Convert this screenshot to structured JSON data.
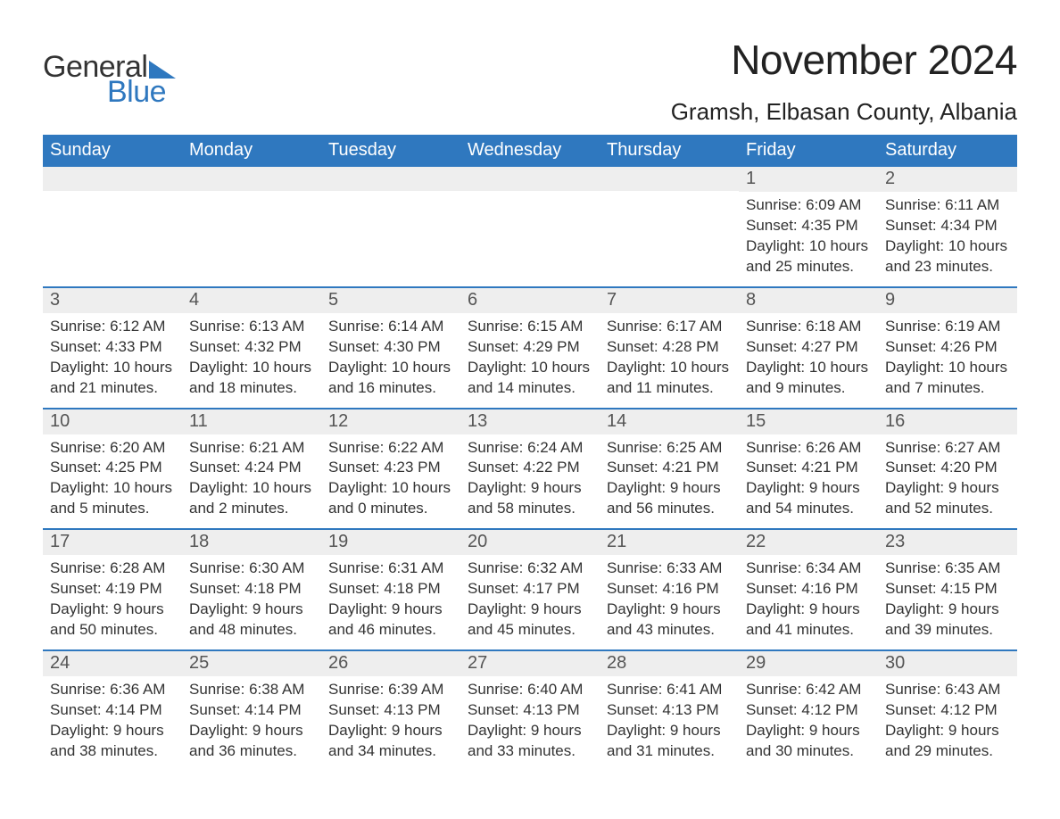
{
  "logo": {
    "text1": "General",
    "text2": "Blue",
    "icon_color": "#2f78bf"
  },
  "title": "November 2024",
  "location": "Gramsh, Elbasan County, Albania",
  "colors": {
    "header_bg": "#2f78bf",
    "header_text": "#ffffff",
    "row_divider": "#2f78bf",
    "daynum_bg": "#eeeeee",
    "daynum_text": "#555555",
    "body_text": "#333333",
    "page_bg": "#ffffff"
  },
  "typography": {
    "title_fontsize": 46,
    "location_fontsize": 26,
    "dayheader_fontsize": 20,
    "daynum_fontsize": 20,
    "details_fontsize": 17
  },
  "day_headers": [
    "Sunday",
    "Monday",
    "Tuesday",
    "Wednesday",
    "Thursday",
    "Friday",
    "Saturday"
  ],
  "weeks": [
    [
      {
        "day": "",
        "sunrise": "",
        "sunset": "",
        "daylight": ""
      },
      {
        "day": "",
        "sunrise": "",
        "sunset": "",
        "daylight": ""
      },
      {
        "day": "",
        "sunrise": "",
        "sunset": "",
        "daylight": ""
      },
      {
        "day": "",
        "sunrise": "",
        "sunset": "",
        "daylight": ""
      },
      {
        "day": "",
        "sunrise": "",
        "sunset": "",
        "daylight": ""
      },
      {
        "day": "1",
        "sunrise": "Sunrise: 6:09 AM",
        "sunset": "Sunset: 4:35 PM",
        "daylight": "Daylight: 10 hours and 25 minutes."
      },
      {
        "day": "2",
        "sunrise": "Sunrise: 6:11 AM",
        "sunset": "Sunset: 4:34 PM",
        "daylight": "Daylight: 10 hours and 23 minutes."
      }
    ],
    [
      {
        "day": "3",
        "sunrise": "Sunrise: 6:12 AM",
        "sunset": "Sunset: 4:33 PM",
        "daylight": "Daylight: 10 hours and 21 minutes."
      },
      {
        "day": "4",
        "sunrise": "Sunrise: 6:13 AM",
        "sunset": "Sunset: 4:32 PM",
        "daylight": "Daylight: 10 hours and 18 minutes."
      },
      {
        "day": "5",
        "sunrise": "Sunrise: 6:14 AM",
        "sunset": "Sunset: 4:30 PM",
        "daylight": "Daylight: 10 hours and 16 minutes."
      },
      {
        "day": "6",
        "sunrise": "Sunrise: 6:15 AM",
        "sunset": "Sunset: 4:29 PM",
        "daylight": "Daylight: 10 hours and 14 minutes."
      },
      {
        "day": "7",
        "sunrise": "Sunrise: 6:17 AM",
        "sunset": "Sunset: 4:28 PM",
        "daylight": "Daylight: 10 hours and 11 minutes."
      },
      {
        "day": "8",
        "sunrise": "Sunrise: 6:18 AM",
        "sunset": "Sunset: 4:27 PM",
        "daylight": "Daylight: 10 hours and 9 minutes."
      },
      {
        "day": "9",
        "sunrise": "Sunrise: 6:19 AM",
        "sunset": "Sunset: 4:26 PM",
        "daylight": "Daylight: 10 hours and 7 minutes."
      }
    ],
    [
      {
        "day": "10",
        "sunrise": "Sunrise: 6:20 AM",
        "sunset": "Sunset: 4:25 PM",
        "daylight": "Daylight: 10 hours and 5 minutes."
      },
      {
        "day": "11",
        "sunrise": "Sunrise: 6:21 AM",
        "sunset": "Sunset: 4:24 PM",
        "daylight": "Daylight: 10 hours and 2 minutes."
      },
      {
        "day": "12",
        "sunrise": "Sunrise: 6:22 AM",
        "sunset": "Sunset: 4:23 PM",
        "daylight": "Daylight: 10 hours and 0 minutes."
      },
      {
        "day": "13",
        "sunrise": "Sunrise: 6:24 AM",
        "sunset": "Sunset: 4:22 PM",
        "daylight": "Daylight: 9 hours and 58 minutes."
      },
      {
        "day": "14",
        "sunrise": "Sunrise: 6:25 AM",
        "sunset": "Sunset: 4:21 PM",
        "daylight": "Daylight: 9 hours and 56 minutes."
      },
      {
        "day": "15",
        "sunrise": "Sunrise: 6:26 AM",
        "sunset": "Sunset: 4:21 PM",
        "daylight": "Daylight: 9 hours and 54 minutes."
      },
      {
        "day": "16",
        "sunrise": "Sunrise: 6:27 AM",
        "sunset": "Sunset: 4:20 PM",
        "daylight": "Daylight: 9 hours and 52 minutes."
      }
    ],
    [
      {
        "day": "17",
        "sunrise": "Sunrise: 6:28 AM",
        "sunset": "Sunset: 4:19 PM",
        "daylight": "Daylight: 9 hours and 50 minutes."
      },
      {
        "day": "18",
        "sunrise": "Sunrise: 6:30 AM",
        "sunset": "Sunset: 4:18 PM",
        "daylight": "Daylight: 9 hours and 48 minutes."
      },
      {
        "day": "19",
        "sunrise": "Sunrise: 6:31 AM",
        "sunset": "Sunset: 4:18 PM",
        "daylight": "Daylight: 9 hours and 46 minutes."
      },
      {
        "day": "20",
        "sunrise": "Sunrise: 6:32 AM",
        "sunset": "Sunset: 4:17 PM",
        "daylight": "Daylight: 9 hours and 45 minutes."
      },
      {
        "day": "21",
        "sunrise": "Sunrise: 6:33 AM",
        "sunset": "Sunset: 4:16 PM",
        "daylight": "Daylight: 9 hours and 43 minutes."
      },
      {
        "day": "22",
        "sunrise": "Sunrise: 6:34 AM",
        "sunset": "Sunset: 4:16 PM",
        "daylight": "Daylight: 9 hours and 41 minutes."
      },
      {
        "day": "23",
        "sunrise": "Sunrise: 6:35 AM",
        "sunset": "Sunset: 4:15 PM",
        "daylight": "Daylight: 9 hours and 39 minutes."
      }
    ],
    [
      {
        "day": "24",
        "sunrise": "Sunrise: 6:36 AM",
        "sunset": "Sunset: 4:14 PM",
        "daylight": "Daylight: 9 hours and 38 minutes."
      },
      {
        "day": "25",
        "sunrise": "Sunrise: 6:38 AM",
        "sunset": "Sunset: 4:14 PM",
        "daylight": "Daylight: 9 hours and 36 minutes."
      },
      {
        "day": "26",
        "sunrise": "Sunrise: 6:39 AM",
        "sunset": "Sunset: 4:13 PM",
        "daylight": "Daylight: 9 hours and 34 minutes."
      },
      {
        "day": "27",
        "sunrise": "Sunrise: 6:40 AM",
        "sunset": "Sunset: 4:13 PM",
        "daylight": "Daylight: 9 hours and 33 minutes."
      },
      {
        "day": "28",
        "sunrise": "Sunrise: 6:41 AM",
        "sunset": "Sunset: 4:13 PM",
        "daylight": "Daylight: 9 hours and 31 minutes."
      },
      {
        "day": "29",
        "sunrise": "Sunrise: 6:42 AM",
        "sunset": "Sunset: 4:12 PM",
        "daylight": "Daylight: 9 hours and 30 minutes."
      },
      {
        "day": "30",
        "sunrise": "Sunrise: 6:43 AM",
        "sunset": "Sunset: 4:12 PM",
        "daylight": "Daylight: 9 hours and 29 minutes."
      }
    ]
  ]
}
